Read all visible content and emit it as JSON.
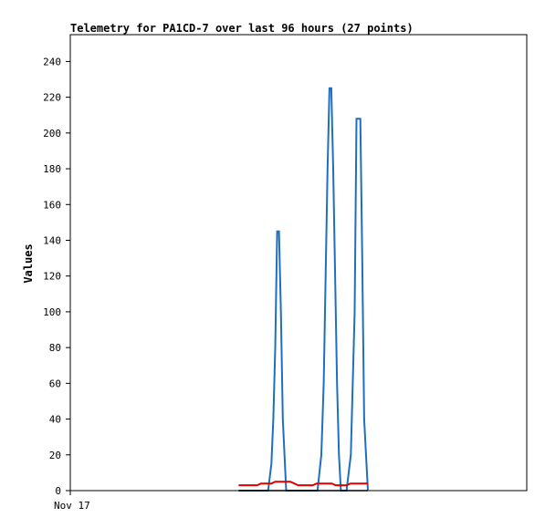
{
  "chart_data": {
    "type": "line",
    "title": "Telemetry for PA1CD-7 over last 96 hours (27 points)",
    "xlabel": "",
    "ylabel": "Values",
    "ylim": [
      0,
      255
    ],
    "yticks": [
      0,
      20,
      40,
      60,
      80,
      100,
      120,
      140,
      160,
      180,
      200,
      220,
      240
    ],
    "xticks": [
      {
        "x": 0,
        "label": "Nov 17"
      }
    ],
    "xlim": [
      0,
      96
    ],
    "grid": false,
    "series": [
      {
        "color": "#1f6fbf",
        "x": [
          35.4,
          41.6,
          42.3,
          42.7,
          43.1,
          43.5,
          43.9,
          44.3,
          44.7,
          45.4,
          52.0,
          52.8,
          53.3,
          53.7,
          54.1,
          54.5,
          54.9,
          55.3,
          55.7,
          56.1,
          56.5,
          56.9,
          57.4,
          58.1,
          59.0,
          59.8,
          60.2,
          60.6,
          61.0,
          61.4,
          61.8,
          62.6
        ],
        "y": [
          0,
          0,
          15,
          40,
          80,
          145,
          145,
          100,
          40,
          0,
          0,
          20,
          60,
          120,
          180,
          225,
          225,
          180,
          120,
          60,
          20,
          0,
          0,
          0,
          20,
          100,
          208,
          208,
          208,
          130,
          40,
          0
        ]
      },
      {
        "color": "#e00000",
        "x": [
          35.4,
          38.5,
          39.3,
          40.1,
          40.9,
          41.6,
          42.3,
          43.1,
          43.9,
          44.7,
          46.3,
          47.1,
          47.9,
          48.7,
          49.5,
          50.2,
          51.0,
          51.8,
          52.6,
          53.4,
          54.2,
          55.0,
          55.8,
          56.6,
          57.4,
          58.1,
          58.9,
          59.6,
          60.4,
          61.2,
          62.0,
          62.6
        ],
        "y": [
          3,
          3,
          3,
          4,
          4,
          4,
          4,
          5,
          5,
          5,
          5,
          4,
          3,
          3,
          3,
          3,
          3,
          4,
          4,
          4,
          4,
          4,
          3,
          3,
          3,
          3,
          4,
          4,
          4,
          4,
          4,
          4
        ]
      }
    ]
  }
}
